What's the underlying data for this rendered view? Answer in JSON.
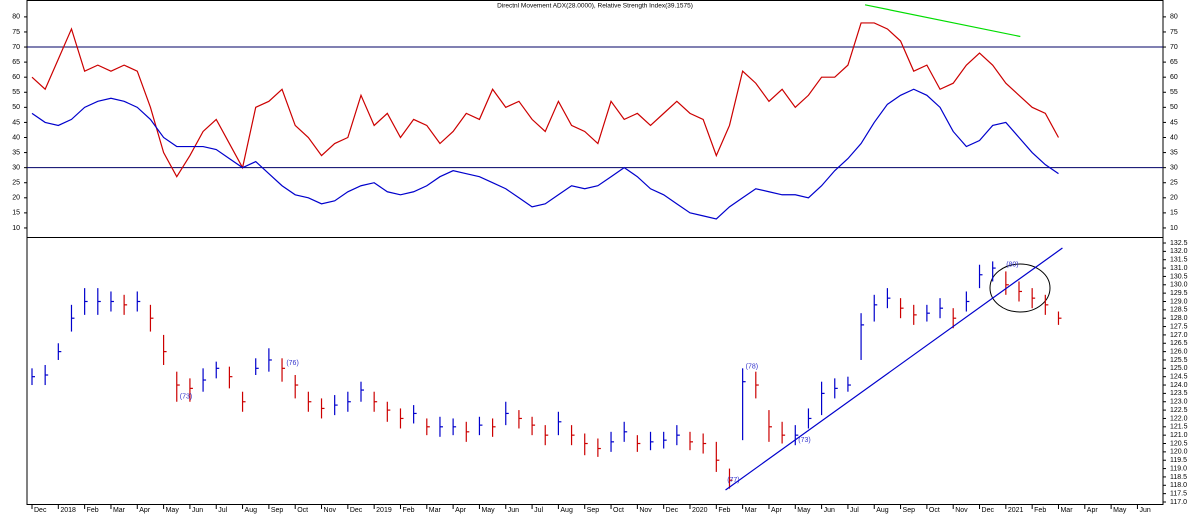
{
  "chart_data": [
    {
      "type": "line",
      "title": "Directnl Movement ADX(28.0000), Relative Strength Index(39.1575)",
      "ylim": [
        7,
        85.6
      ],
      "yticks": [
        10,
        15,
        20,
        25,
        30,
        35,
        40,
        45,
        50,
        55,
        60,
        65,
        70,
        75,
        80
      ],
      "reference_lines": [
        70,
        30
      ],
      "series": [
        {
          "color": "#cc0000",
          "values": [
            60,
            56,
            66,
            76,
            62,
            64,
            62,
            64,
            62,
            50,
            35,
            27,
            34,
            42,
            46,
            38,
            30,
            50,
            52,
            56,
            44,
            40,
            34,
            38,
            40,
            54,
            44,
            48,
            40,
            46,
            44,
            38,
            42,
            48,
            46,
            56,
            50,
            52,
            46,
            42,
            52,
            44,
            42,
            38,
            52,
            46,
            48,
            44,
            48,
            52,
            48,
            46,
            34,
            44,
            62,
            58,
            52,
            56,
            50,
            54,
            60,
            60,
            64,
            78,
            78,
            76,
            72,
            62,
            64,
            56,
            58,
            64,
            68,
            64,
            58,
            54,
            50,
            48,
            40,
            null,
            null,
            null,
            null,
            null,
            null,
            null
          ]
        },
        {
          "color": "#0000cc",
          "values": [
            48,
            45,
            44,
            46,
            50,
            52,
            53,
            52,
            50,
            46,
            40,
            37,
            37,
            37,
            36,
            33,
            30,
            32,
            28,
            24,
            21,
            20,
            18,
            19,
            22,
            24,
            25,
            22,
            21,
            22,
            24,
            27,
            29,
            28,
            27,
            25,
            23,
            20,
            17,
            18,
            21,
            24,
            23,
            24,
            27,
            30,
            27,
            23,
            21,
            18,
            15,
            14,
            13,
            17,
            20,
            23,
            22,
            21,
            21,
            20,
            24,
            29,
            33,
            38,
            45,
            51,
            54,
            56,
            54,
            50,
            42,
            37,
            39,
            44,
            45,
            40,
            35,
            31,
            28,
            null,
            null,
            null,
            null,
            null,
            null,
            null
          ]
        }
      ],
      "trendlines": [
        {
          "color": "#00dd00",
          "from": [
            63.3,
            84
          ],
          "to": [
            75.1,
            73.5
          ]
        }
      ]
    },
    {
      "type": "ohlc",
      "categories": [
        "Dec",
        null,
        "2018",
        null,
        "Feb",
        null,
        "Mar",
        null,
        "Apr",
        null,
        "May",
        null,
        "Jun",
        null,
        "Jul",
        null,
        "Aug",
        null,
        "Sep",
        null,
        "Oct",
        null,
        "Nov",
        null,
        "Dec",
        null,
        "2019",
        null,
        "Feb",
        null,
        "Mar",
        null,
        "Apr",
        null,
        "May",
        null,
        "Jun",
        null,
        "Jul",
        null,
        "Aug",
        null,
        "Sep",
        null,
        "Oct",
        null,
        "Nov",
        null,
        "Dec",
        null,
        "2020",
        null,
        "Feb",
        null,
        "Mar",
        null,
        "Apr",
        null,
        "May",
        null,
        "Jun",
        null,
        "Jul",
        null,
        "Aug",
        null,
        "Sep",
        null,
        "Oct",
        null,
        "Nov",
        null,
        "Dec",
        null,
        "2021",
        null,
        "Feb",
        null,
        "Mar",
        null,
        "Apr",
        null,
        "May",
        null,
        "Jun",
        null
      ],
      "high": [
        125,
        125.2,
        126.5,
        128.8,
        129.8,
        129.8,
        129.6,
        129.4,
        129.6,
        128.8,
        127,
        124.8,
        124.4,
        125,
        125.4,
        125.1,
        123.6,
        125.6,
        126.2,
        125.6,
        124.6,
        123.6,
        123.2,
        123.4,
        123.6,
        124.2,
        123.6,
        123,
        122.6,
        122.8,
        122,
        122.1,
        122,
        121.8,
        122.1,
        122,
        123,
        122.5,
        122.1,
        121.6,
        122.4,
        121.6,
        121.1,
        120.8,
        121.2,
        121.8,
        121,
        121.2,
        121.2,
        121.6,
        121.2,
        121.1,
        120.6,
        119,
        125,
        124.8,
        122.5,
        121.8,
        121.6,
        122.6,
        124.2,
        124.4,
        124.5,
        128.3,
        129.4,
        129.8,
        129.2,
        128.8,
        128.8,
        129.2,
        128.6,
        129.6,
        131.2,
        131.4,
        130.8,
        130.2,
        129.8,
        129.4,
        128.4,
        null,
        null,
        null,
        null,
        null,
        null,
        null
      ],
      "low": [
        124,
        124,
        125.5,
        127.2,
        128.2,
        128.2,
        128.4,
        128.2,
        128.4,
        127.2,
        125.2,
        123,
        123,
        123.6,
        124.4,
        123.8,
        122.4,
        124.6,
        124.8,
        124.2,
        123.2,
        122.4,
        122,
        122.2,
        122.4,
        123,
        122.4,
        121.8,
        121.4,
        121.7,
        121,
        120.9,
        121,
        120.6,
        121,
        120.9,
        121.6,
        121.4,
        121,
        120.4,
        121,
        120.4,
        119.8,
        119.7,
        120,
        120.6,
        120,
        120.1,
        120.2,
        120.4,
        120.1,
        119.9,
        118.8,
        117.8,
        120.7,
        123.2,
        120.6,
        120.5,
        120.4,
        121.4,
        122.2,
        123.2,
        123.6,
        125.5,
        127.8,
        128.6,
        128,
        127.6,
        127.8,
        128,
        127.4,
        128.4,
        129.8,
        130.2,
        129.4,
        129,
        128.6,
        128.2,
        127.6,
        null,
        null,
        null,
        null,
        null,
        null,
        null
      ],
      "close": [
        124.5,
        124.6,
        126,
        128,
        129,
        129,
        129,
        128.8,
        129,
        128,
        126,
        124,
        123.8,
        124.3,
        125,
        124.5,
        123,
        125,
        125.5,
        125,
        124,
        123,
        122.6,
        122.8,
        123,
        123.7,
        123,
        122.5,
        122,
        122.3,
        121.5,
        121.5,
        121.5,
        121.2,
        121.6,
        121.5,
        122.3,
        122,
        121.6,
        121,
        121.8,
        121,
        120.5,
        120.2,
        120.6,
        121.2,
        120.5,
        120.6,
        120.7,
        121,
        120.6,
        120.5,
        119.5,
        118.3,
        124.2,
        124,
        121.5,
        121,
        121,
        122,
        123.5,
        123.8,
        124,
        127.6,
        128.8,
        129.2,
        128.6,
        128.2,
        128.3,
        128.6,
        128,
        129,
        130.6,
        131,
        130,
        129.6,
        129.2,
        128.8,
        128,
        null,
        null,
        null,
        null,
        null,
        null,
        null
      ],
      "up_color": "#0000cc",
      "down_color": "#cc0000",
      "ylim": [
        116.82,
        132.86
      ],
      "yticks": [
        {
          "value": 117,
          "label": "117.0"
        },
        117.5,
        {
          "value": 118,
          "label": "118.0"
        },
        118.5,
        {
          "value": 119,
          "label": "119.0"
        },
        119.5,
        {
          "value": 120,
          "label": "120.0"
        },
        120.5,
        {
          "value": 121,
          "label": "121.0"
        },
        121.5,
        {
          "value": 122,
          "label": "122.0"
        },
        122.5,
        {
          "value": 123,
          "label": "123.0"
        },
        123.5,
        {
          "value": 124,
          "label": "124.0"
        },
        124.5,
        {
          "value": 125,
          "label": "125.0"
        },
        125.5,
        {
          "value": 126,
          "label": "126.0"
        },
        126.5,
        {
          "value": 127,
          "label": "127.0"
        },
        127.5,
        {
          "value": 128,
          "label": "128.0"
        },
        128.5,
        {
          "value": 129,
          "label": "129.0"
        },
        129.5,
        {
          "value": 130,
          "label": "130.0"
        },
        130.5,
        {
          "value": 131,
          "label": "131.0"
        },
        131.5,
        {
          "value": 132,
          "label": "132.0"
        },
        132.5
      ],
      "trendlines": [
        {
          "color": "#0000cc",
          "from": [
            52.7,
            117.72
          ],
          "to": [
            78.3,
            132.2
          ]
        }
      ],
      "annotations": [
        {
          "text": "(73)",
          "at": [
            11.7,
            123.3
          ]
        },
        {
          "text": "(76)",
          "at": [
            19.8,
            125.3
          ]
        },
        {
          "text": "(78)",
          "at": [
            54.7,
            125.1
          ]
        },
        {
          "text": "(77)",
          "at": [
            53.3,
            118.3
          ]
        },
        {
          "text": "(73)",
          "at": [
            58.7,
            120.7
          ]
        },
        {
          "text": "(80)",
          "at": [
            74.5,
            131.2
          ]
        }
      ]
    }
  ]
}
